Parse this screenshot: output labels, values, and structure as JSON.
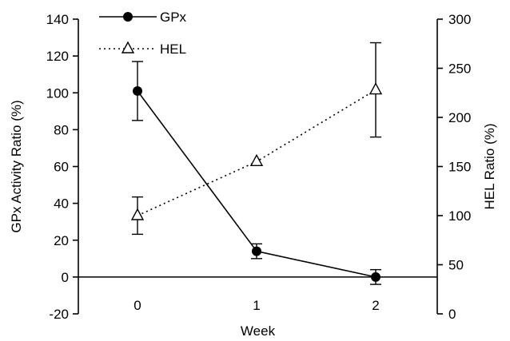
{
  "chart_data": {
    "type": "line",
    "title": "",
    "xlabel": "Week",
    "ylabel": "GPx Activity Ratio (%)",
    "y2label": "HEL Ratio (%)",
    "categories": [
      "0",
      "1",
      "2"
    ],
    "x": [
      0,
      1,
      2
    ],
    "ylim": [
      -20,
      140
    ],
    "yticks": [
      -20,
      0,
      20,
      40,
      60,
      80,
      100,
      120,
      140
    ],
    "y2lim": [
      0,
      300
    ],
    "y2ticks": [
      0,
      50,
      100,
      150,
      200,
      250,
      300
    ],
    "legend_position": "top-left",
    "grid": false,
    "series": [
      {
        "name": "GPx",
        "axis": "left",
        "marker": "filled-circle",
        "line_style": "solid",
        "color": "#000000",
        "values": [
          101,
          14,
          0
        ],
        "error": [
          16,
          4,
          4
        ]
      },
      {
        "name": "HEL",
        "axis": "right",
        "marker": "open-triangle",
        "line_style": "dotted",
        "color": "#000000",
        "values": [
          100,
          155,
          228
        ],
        "error": [
          19,
          0,
          48
        ]
      }
    ]
  }
}
